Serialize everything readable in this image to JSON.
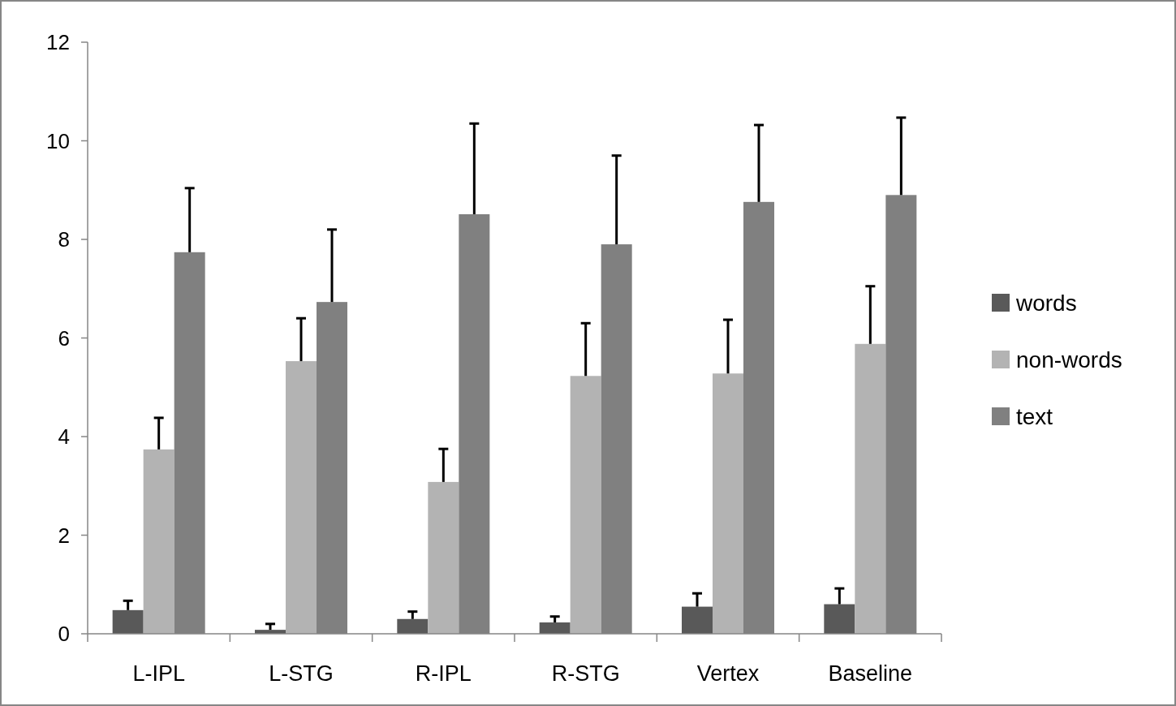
{
  "chart_data": {
    "type": "bar",
    "categories": [
      "L-IPL",
      "L-STG",
      "R-IPL",
      "R-STG",
      "Vertex",
      "Baseline"
    ],
    "series": [
      {
        "name": "words",
        "color": "#595959",
        "values": [
          0.48,
          0.08,
          0.3,
          0.23,
          0.55,
          0.6
        ],
        "errors": [
          [
            0.48,
            0.67
          ],
          [
            0.08,
            0.2
          ],
          [
            0.3,
            0.45
          ],
          [
            0.23,
            0.35
          ],
          [
            0.55,
            0.82
          ],
          [
            0.6,
            0.92
          ]
        ]
      },
      {
        "name": "non-words",
        "color": "#b3b3b3",
        "values": [
          3.74,
          5.53,
          3.08,
          5.23,
          5.28,
          5.88
        ],
        "errors": [
          [
            3.74,
            4.38
          ],
          [
            5.53,
            6.4
          ],
          [
            3.08,
            3.75
          ],
          [
            5.23,
            6.3
          ],
          [
            5.28,
            6.37
          ],
          [
            5.88,
            7.05
          ]
        ]
      },
      {
        "name": "text",
        "color": "#808080",
        "values": [
          7.74,
          6.73,
          8.51,
          7.9,
          8.76,
          8.9
        ],
        "errors": [
          [
            7.74,
            9.04
          ],
          [
            6.73,
            8.2
          ],
          [
            8.51,
            10.35
          ],
          [
            7.9,
            9.7
          ],
          [
            8.76,
            10.32
          ],
          [
            8.9,
            10.47
          ]
        ]
      }
    ],
    "ylim": [
      0,
      12
    ],
    "yticks": [
      0,
      2,
      4,
      6,
      8,
      10,
      12
    ],
    "legend": "right"
  }
}
